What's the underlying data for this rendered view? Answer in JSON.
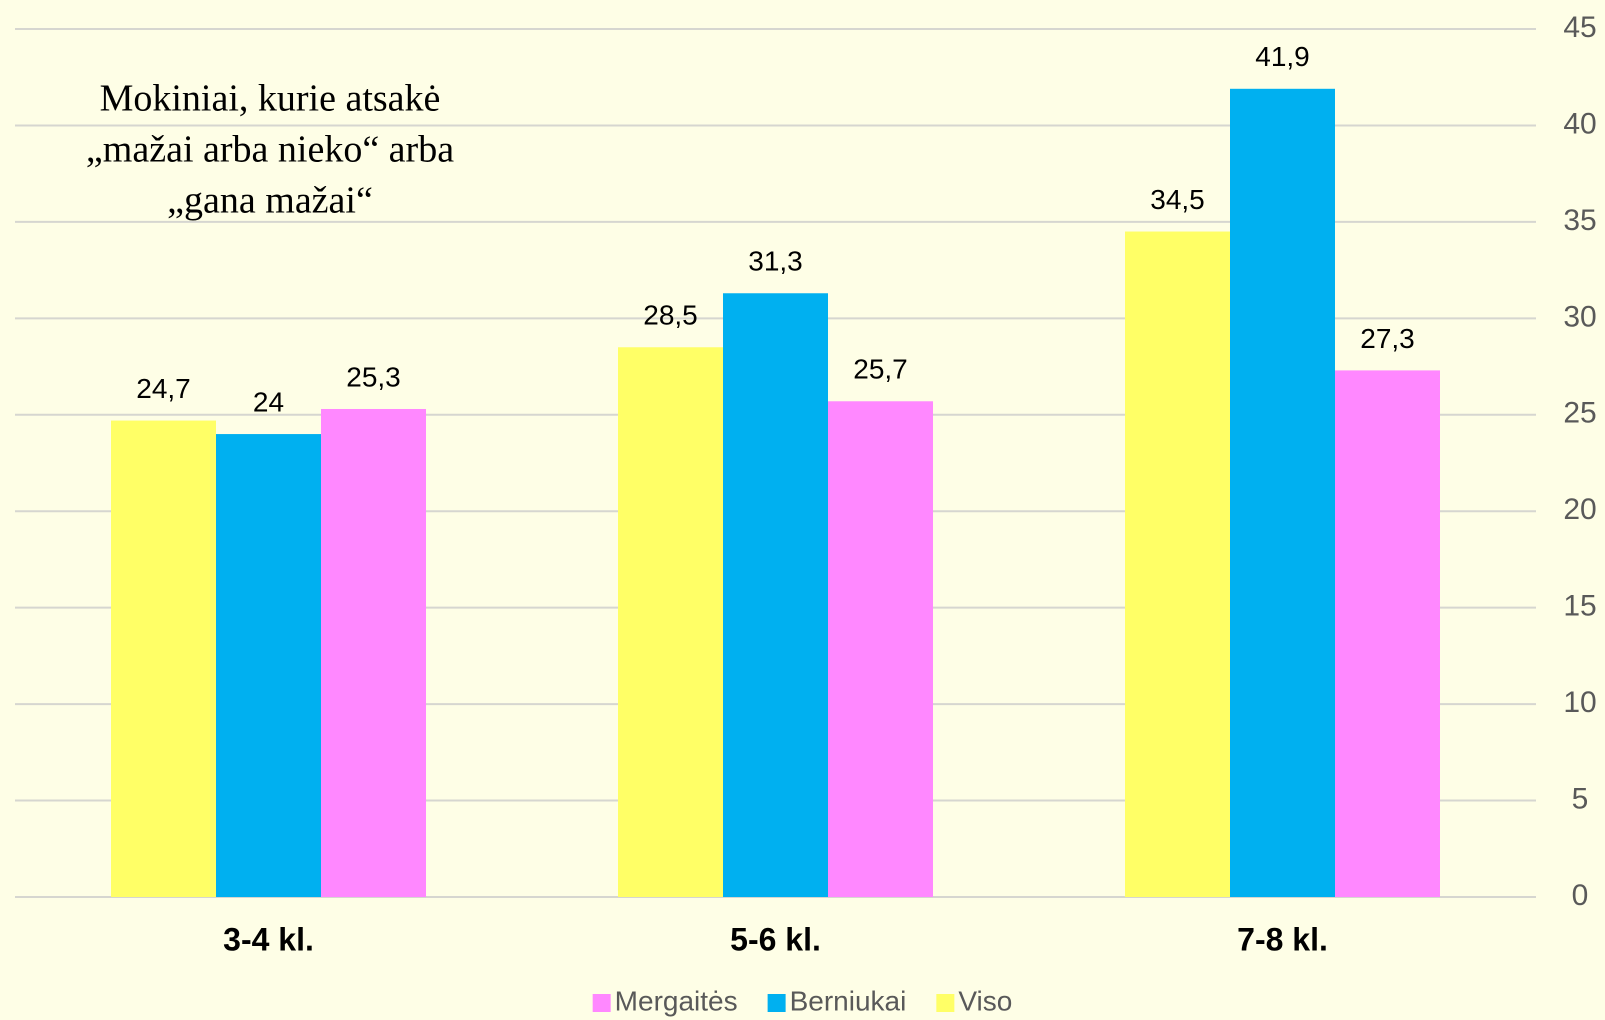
{
  "chart_data": {
    "type": "bar",
    "title": [
      "Mokiniai, kurie atsakė",
      "„mažai arba nieko“ arba",
      "„gana mažai“"
    ],
    "categories": [
      "3-4 kl.",
      "5-6 kl.",
      "7-8 kl."
    ],
    "series": [
      {
        "name": "Mergaitės",
        "color": "#ff88ff",
        "values": [
          25.3,
          25.7,
          27.3
        ],
        "value_labels": [
          "25,3",
          "25,7",
          "27,3"
        ]
      },
      {
        "name": "Berniukai",
        "color": "#00b0f0",
        "values": [
          24,
          31.3,
          41.9
        ],
        "value_labels": [
          "24",
          "31,3",
          "41,9"
        ]
      },
      {
        "name": "Viso",
        "color": "#ffff66",
        "values": [
          24.7,
          28.5,
          34.5
        ],
        "value_labels": [
          "24,7",
          "28,5",
          "34,5"
        ]
      }
    ],
    "ylim": [
      0,
      45
    ],
    "yticks": [
      0,
      5,
      10,
      15,
      20,
      25,
      30,
      35,
      40,
      45
    ],
    "grid": true,
    "y_axis_side": "right",
    "legend": "bottom"
  }
}
